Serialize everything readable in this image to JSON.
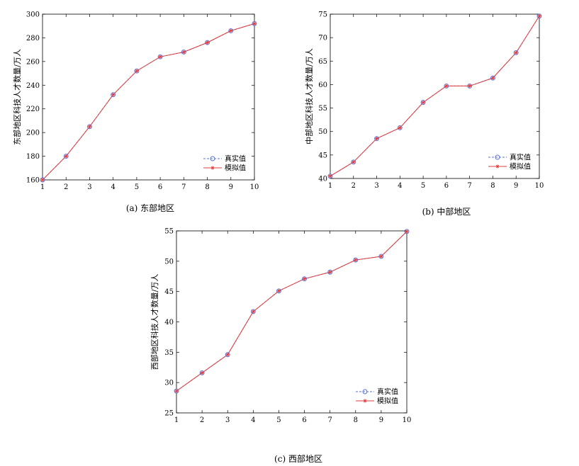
{
  "legend_real": "真实值",
  "legend_sim": "模拟值",
  "colors": {
    "real": "#5a6fd6",
    "sim": "#e23b3b",
    "frame": "#000000"
  },
  "chart_data": [
    {
      "type": "line",
      "caption": "(a) 东部地区",
      "ylabel": "东部地区科技人才数量/万人",
      "x": [
        1,
        2,
        3,
        4,
        5,
        6,
        7,
        8,
        9,
        10
      ],
      "xlim": [
        1,
        10
      ],
      "ylim": [
        160,
        300
      ],
      "yticks": [
        160,
        180,
        200,
        220,
        240,
        260,
        280,
        300
      ],
      "grid": false,
      "legend_position": "bottom-right",
      "series": [
        {
          "name": "真实值",
          "values": [
            160,
            180,
            205,
            232,
            252,
            264,
            268,
            276,
            286,
            292
          ]
        },
        {
          "name": "模拟值",
          "values": [
            160,
            180,
            205,
            232,
            252,
            264,
            268,
            276,
            286,
            292
          ]
        }
      ]
    },
    {
      "type": "line",
      "caption": "(b) 中部地区",
      "ylabel": "中部地区科技人才数量/万人",
      "x": [
        1,
        2,
        3,
        4,
        5,
        6,
        7,
        8,
        9,
        10
      ],
      "xlim": [
        1,
        10
      ],
      "ylim": [
        40,
        75
      ],
      "yticks": [
        40,
        45,
        50,
        55,
        60,
        65,
        70,
        75
      ],
      "grid": false,
      "legend_position": "bottom-right",
      "series": [
        {
          "name": "真实值",
          "values": [
            40.5,
            43.5,
            48.5,
            50.8,
            56.2,
            59.7,
            59.7,
            61.4,
            66.8,
            74.6
          ]
        },
        {
          "name": "模拟值",
          "values": [
            40.5,
            43.5,
            48.5,
            50.8,
            56.2,
            59.7,
            59.7,
            61.4,
            66.8,
            74.6
          ]
        }
      ]
    },
    {
      "type": "line",
      "caption": "(c) 西部地区",
      "ylabel": "西部地区科技人才数量/万人",
      "x": [
        1,
        2,
        3,
        4,
        5,
        6,
        7,
        8,
        9,
        10
      ],
      "xlim": [
        1,
        10
      ],
      "ylim": [
        25,
        55
      ],
      "yticks": [
        25,
        30,
        35,
        40,
        45,
        50,
        55
      ],
      "grid": false,
      "legend_position": "bottom-right",
      "series": [
        {
          "name": "真实值",
          "values": [
            28.6,
            31.6,
            34.6,
            41.7,
            45.1,
            47.1,
            48.2,
            50.2,
            50.8,
            54.9
          ]
        },
        {
          "name": "模拟值",
          "values": [
            28.6,
            31.6,
            34.6,
            41.7,
            45.1,
            47.1,
            48.2,
            50.2,
            50.8,
            54.9
          ]
        }
      ]
    }
  ]
}
